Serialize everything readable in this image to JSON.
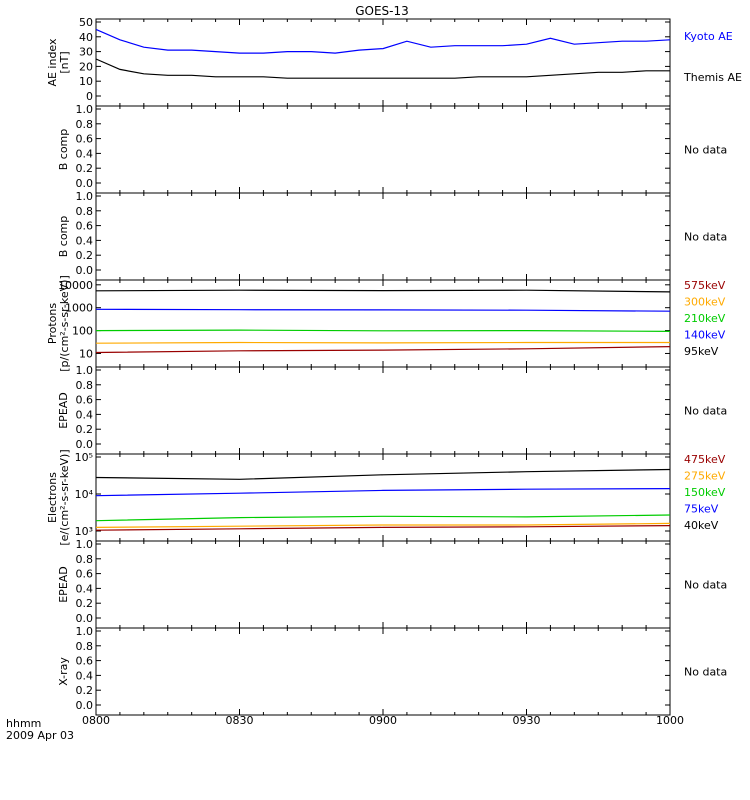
{
  "title": "GOES-13",
  "footer": {
    "axis_label": "hhmm",
    "date": "2009 Apr 03",
    "ticks": [
      "0800",
      "0830",
      "0900",
      "0930",
      "1000"
    ]
  },
  "chart_data": [
    {
      "type": "line",
      "ylabel_lines": [
        "AE index",
        "[nT]"
      ],
      "ylim": [
        0,
        50
      ],
      "yticks": [
        "0",
        "10",
        "20",
        "30",
        "40",
        "50"
      ],
      "log": false,
      "x": [
        "08:00",
        "08:05",
        "08:10",
        "08:15",
        "08:20",
        "08:25",
        "08:30",
        "08:35",
        "08:40",
        "08:45",
        "08:50",
        "08:55",
        "09:00",
        "09:05",
        "09:10",
        "09:15",
        "09:20",
        "09:25",
        "09:30",
        "09:35",
        "09:40",
        "09:45",
        "09:50",
        "09:55",
        "10:00"
      ],
      "series": [
        {
          "name": "Kyoto AE",
          "color": "#0000ff",
          "values": [
            45,
            38,
            33,
            31,
            31,
            30,
            29,
            29,
            30,
            30,
            29,
            31,
            32,
            37,
            33,
            34,
            34,
            34,
            35,
            39,
            35,
            36,
            37,
            37,
            38
          ]
        },
        {
          "name": "Themis AE",
          "color": "#000000",
          "values": [
            25,
            18,
            15,
            14,
            14,
            13,
            13,
            13,
            12,
            12,
            12,
            12,
            12,
            12,
            12,
            12,
            13,
            13,
            13,
            14,
            15,
            16,
            16,
            17,
            17
          ]
        }
      ],
      "status": ""
    },
    {
      "type": "line",
      "ylabel_lines": [
        "B comp"
      ],
      "ylim": [
        0,
        1
      ],
      "yticks": [
        "0.0",
        "0.2",
        "0.4",
        "0.6",
        "0.8",
        "1.0"
      ],
      "log": false,
      "series": [],
      "status": "No data"
    },
    {
      "type": "line",
      "ylabel_lines": [
        "B comp"
      ],
      "ylim": [
        0,
        1
      ],
      "yticks": [
        "0.0",
        "0.2",
        "0.4",
        "0.6",
        "0.8",
        "1.0"
      ],
      "log": false,
      "series": [],
      "status": "No data"
    },
    {
      "type": "line",
      "ylabel_lines": [
        "Protons",
        "[p/(cm²-s-sr-keV)]"
      ],
      "ylim": [
        7,
        12000
      ],
      "yticks": [
        "10",
        "100",
        "1000",
        "10000"
      ],
      "ytick_values": [
        10,
        100,
        1000,
        10000
      ],
      "log": true,
      "x": [
        "08:00",
        "08:30",
        "09:00",
        "09:30",
        "10:00"
      ],
      "series": [
        {
          "name": "575keV",
          "color": "#990000",
          "values": [
            11,
            13,
            14,
            16,
            20
          ]
        },
        {
          "name": "300keV",
          "color": "#ffaa00",
          "values": [
            28,
            30,
            29,
            30,
            30
          ]
        },
        {
          "name": "210keV",
          "color": "#00cc00",
          "values": [
            100,
            105,
            98,
            100,
            92
          ]
        },
        {
          "name": "140keV",
          "color": "#0000ff",
          "values": [
            850,
            820,
            800,
            780,
            700
          ]
        },
        {
          "name": "95keV",
          "color": "#000000",
          "values": [
            5500,
            5800,
            5600,
            5800,
            4900
          ]
        }
      ],
      "status": ""
    },
    {
      "type": "line",
      "ylabel_lines": [
        "EPEAD"
      ],
      "ylim": [
        0,
        1
      ],
      "yticks": [
        "0.0",
        "0.2",
        "0.4",
        "0.6",
        "0.8",
        "1.0"
      ],
      "log": false,
      "series": [],
      "status": "No data"
    },
    {
      "type": "line",
      "ylabel_lines": [
        "Electrons",
        "[e/(cm²-s-sr-keV)]"
      ],
      "ylim": [
        1000,
        100000
      ],
      "yticks": [
        "10³",
        "10⁴",
        "10⁵"
      ],
      "ytick_values": [
        1000,
        10000,
        100000
      ],
      "log": true,
      "x": [
        "08:00",
        "08:30",
        "09:00",
        "09:30",
        "10:00"
      ],
      "series": [
        {
          "name": "475keV",
          "color": "#990000",
          "values": [
            1050,
            1150,
            1250,
            1300,
            1400
          ]
        },
        {
          "name": "275keV",
          "color": "#ffaa00",
          "values": [
            1250,
            1350,
            1450,
            1450,
            1600
          ]
        },
        {
          "name": "150keV",
          "color": "#00cc00",
          "values": [
            1900,
            2300,
            2500,
            2400,
            2700
          ]
        },
        {
          "name": "75keV",
          "color": "#0000ff",
          "values": [
            9000,
            10500,
            12500,
            13500,
            14000
          ]
        },
        {
          "name": "40keV",
          "color": "#000000",
          "values": [
            28000,
            25000,
            33000,
            40000,
            46000
          ]
        }
      ],
      "status": ""
    },
    {
      "type": "line",
      "ylabel_lines": [
        "EPEAD"
      ],
      "ylim": [
        0,
        1
      ],
      "yticks": [
        "0.0",
        "0.2",
        "0.4",
        "0.6",
        "0.8",
        "1.0"
      ],
      "log": false,
      "series": [],
      "status": "No data"
    },
    {
      "type": "line",
      "ylabel_lines": [
        "X-ray"
      ],
      "ylim": [
        0,
        1
      ],
      "yticks": [
        "0.0",
        "0.2",
        "0.4",
        "0.6",
        "0.8",
        "1.0"
      ],
      "log": false,
      "series": [],
      "status": "No data"
    }
  ]
}
